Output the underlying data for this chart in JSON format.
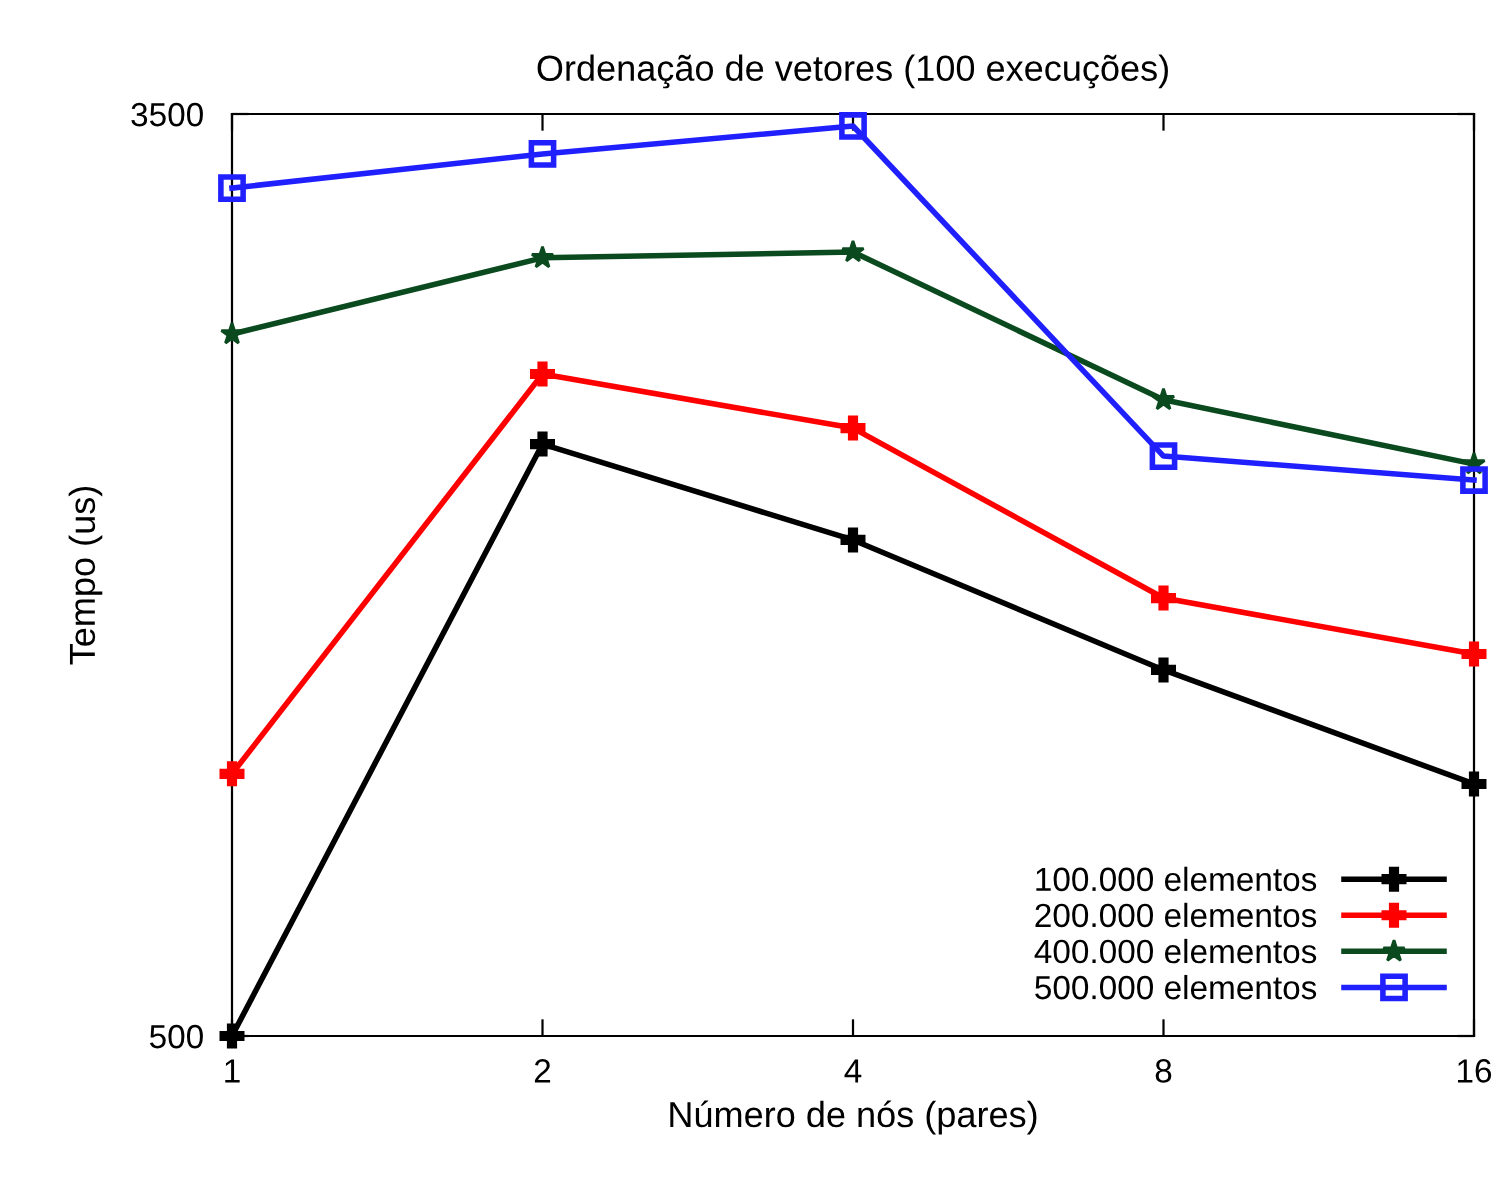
{
  "chart_data": {
    "type": "line",
    "title": "Ordenação de vetores (100 execuções)",
    "xlabel": "Número de nós (pares)",
    "ylabel": "Tempo (us)",
    "categories": [
      "1",
      "2",
      "4",
      "8",
      "16"
    ],
    "ylim": [
      500,
      3500
    ],
    "yticks": [
      500,
      3500
    ],
    "grid": false,
    "legend": "bottom right",
    "line_style": "solid",
    "series": [
      {
        "name": "100.000 elementos",
        "color": "#000000",
        "marker": "cross",
        "values": [
          500,
          2426,
          2114,
          1691,
          1320
        ]
      },
      {
        "name": "200.000 elementos",
        "color": "#ff0000",
        "marker": "cross",
        "values": [
          1353,
          2654,
          2478,
          1925,
          1743
        ]
      },
      {
        "name": "400.000 elementos",
        "color": "#0a4a1e",
        "marker": "star",
        "values": [
          2784,
          3032,
          3051,
          2570,
          2361
        ]
      },
      {
        "name": "500.000 elementos",
        "color": "#2020ff",
        "marker": "square",
        "values": [
          3259,
          3370,
          3461,
          2387,
          2309
        ]
      }
    ]
  }
}
